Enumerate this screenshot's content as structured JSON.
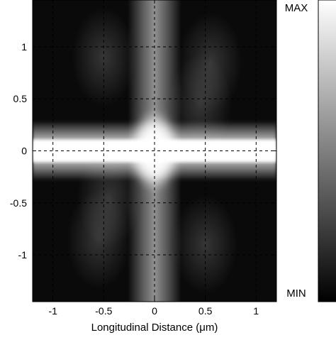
{
  "chart_data": {
    "type": "heatmap",
    "title": "",
    "xlabel": "Longitudinal Distance (μm)",
    "ylabel": "",
    "xlim": [
      -1.2,
      1.2
    ],
    "ylim": [
      -1.45,
      1.45
    ],
    "xticks": [
      -1,
      -0.5,
      0,
      0.5,
      1
    ],
    "xtick_labels": [
      "-1",
      "-0.5",
      "0",
      "0.5",
      "1"
    ],
    "yticks": [
      1,
      0.5,
      0,
      -0.5,
      -1
    ],
    "ytick_labels": [
      "1",
      "0.5",
      "0",
      "-0.5",
      "-1"
    ],
    "grid": true,
    "colormap": "gray",
    "colorbar": {
      "max_label": "MAX",
      "min_label": "MIN"
    },
    "features": [
      {
        "name": "horizontal bright band",
        "x_range": [
          -1.2,
          1.2
        ],
        "y_center": 0,
        "y_half_width": 0.12
      },
      {
        "name": "vertical bright band",
        "x_center": 0,
        "x_half_width": 0.12,
        "y_range": [
          -1.45,
          1.45
        ]
      },
      {
        "name": "central hot spot",
        "x": 0,
        "y": 0
      }
    ]
  }
}
